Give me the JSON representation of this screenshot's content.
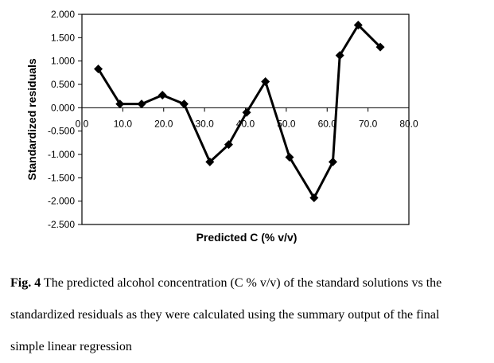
{
  "chart_data": {
    "type": "line",
    "xlabel": "Predicted  C (% v/v)",
    "ylabel": "Standardized residuals",
    "xlim": [
      0,
      80
    ],
    "ylim": [
      -2.5,
      2.0
    ],
    "x_ticks": [
      "0.0",
      "10.0",
      "20.0",
      "30.0",
      "40.0",
      "50.0",
      "60.0",
      "70.0",
      "80.0"
    ],
    "y_ticks": [
      "2.000",
      "1.500",
      "1.000",
      "0.500",
      "0.000",
      "-0.500",
      "-1.000",
      "-1.500",
      "-2.000",
      "-2.500"
    ],
    "grid": false,
    "series": [
      {
        "x": [
          4.0,
          9.3,
          14.6,
          19.7,
          25.0,
          31.3,
          35.9,
          40.3,
          44.9,
          50.8,
          56.8,
          61.4,
          63.1,
          67.6,
          73.0
        ],
        "y": [
          0.83,
          0.08,
          0.08,
          0.27,
          0.08,
          -1.16,
          -0.79,
          -0.1,
          0.56,
          -1.06,
          -1.93,
          -1.16,
          1.12,
          1.77,
          1.3
        ]
      }
    ],
    "colors": {
      "line": "#000000",
      "marker": "#000000"
    }
  },
  "caption": {
    "label": "Fig. 4",
    "lines": [
      " The predicted alcohol concentration (C % v/v) of the standard solutions vs the",
      "standardized residuals as they were calculated using the summary output of the final",
      "simple linear regression"
    ]
  }
}
